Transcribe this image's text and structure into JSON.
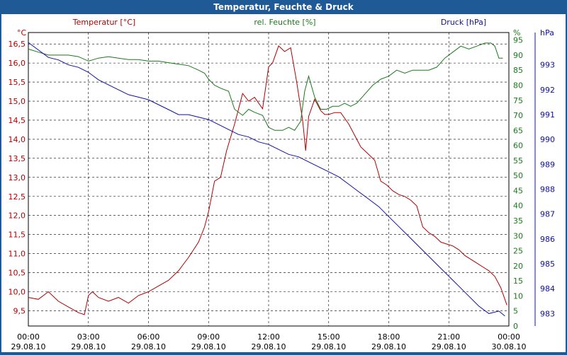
{
  "window": {
    "title": "Temperatur, Feuchte & Druck"
  },
  "colors": {
    "temperature": "#b00000",
    "humidity": "#1a7a1a",
    "pressure": "#1010a0",
    "grid": "#000000",
    "titlebar": "#1f5a96"
  },
  "chart_data": {
    "type": "line",
    "title": "Temperatur, Feuchte & Druck",
    "x_ticks": [
      {
        "time": "00:00",
        "date": "29.08.10"
      },
      {
        "time": "03:00",
        "date": "29.08.10"
      },
      {
        "time": "06:00",
        "date": "29.08.10"
      },
      {
        "time": "09:00",
        "date": "29.08.10"
      },
      {
        "time": "12:00",
        "date": "29.08.10"
      },
      {
        "time": "15:00",
        "date": "29.08.10"
      },
      {
        "time": "18:00",
        "date": "29.08.10"
      },
      {
        "time": "21:00",
        "date": "29.08.10"
      },
      {
        "time": "00:00",
        "date": "30.08.10"
      }
    ],
    "xlim": [
      0,
      24
    ],
    "axes": {
      "temperature": {
        "label": "Temperatur [°C]",
        "unit": "°C",
        "ylim": [
          9.1,
          16.8
        ],
        "ticks": [
          "9,5",
          "10,0",
          "10,5",
          "11,0",
          "11,5",
          "12,0",
          "12,5",
          "13,0",
          "13,5",
          "14,0",
          "14,5",
          "15,0",
          "15,5",
          "16,0",
          "16,5"
        ],
        "tick_values": [
          9.5,
          10,
          10.5,
          11,
          11.5,
          12,
          12.5,
          13,
          13.5,
          14,
          14.5,
          15,
          15.5,
          16,
          16.5
        ]
      },
      "humidity": {
        "label": "rel. Feuchte [%]",
        "unit": "%",
        "ylim": [
          0,
          97.5
        ],
        "ticks": [
          "0",
          "5",
          "10",
          "15",
          "20",
          "25",
          "30",
          "35",
          "40",
          "45",
          "50",
          "55",
          "60",
          "65",
          "70",
          "75",
          "80",
          "85",
          "90",
          "95"
        ],
        "tick_values": [
          0,
          5,
          10,
          15,
          20,
          25,
          30,
          35,
          40,
          45,
          50,
          55,
          60,
          65,
          70,
          75,
          80,
          85,
          90,
          95
        ]
      },
      "pressure": {
        "label": "Druck [hPa]",
        "unit": "hPa",
        "ylim": [
          982.5,
          994.3
        ],
        "ticks": [
          "983",
          "984",
          "985",
          "986",
          "987",
          "988",
          "989",
          "990",
          "991",
          "992",
          "993"
        ],
        "tick_values": [
          983,
          984,
          985,
          986,
          987,
          988,
          989,
          990,
          991,
          992,
          993
        ]
      }
    },
    "series": [
      {
        "name": "Temperatur",
        "axis": "temperature",
        "x": [
          0,
          0.5,
          1,
          1.5,
          2,
          2.5,
          2.8,
          3,
          3.2,
          3.5,
          4,
          4.5,
          5,
          5.5,
          6,
          6.5,
          7,
          7.5,
          8,
          8.5,
          8.8,
          9,
          9.3,
          9.6,
          9.9,
          10.3,
          10.7,
          11,
          11.3,
          11.7,
          12,
          12.2,
          12.5,
          12.8,
          13.1,
          13.4,
          13.7,
          13.85,
          14,
          14.3,
          14.6,
          14.8,
          15,
          15.3,
          15.6,
          16,
          16.3,
          16.6,
          17,
          17.3,
          17.6,
          17.9,
          18.2,
          18.5,
          18.8,
          19.1,
          19.4,
          19.7,
          20,
          20.3,
          20.6,
          20.9,
          21.2,
          21.5,
          21.8,
          22.1,
          22.4,
          22.7,
          23,
          23.3,
          23.6,
          23.9
        ],
        "values": [
          9.85,
          9.8,
          10.0,
          9.75,
          9.6,
          9.45,
          9.4,
          9.9,
          10.0,
          9.85,
          9.75,
          9.85,
          9.7,
          9.9,
          10.0,
          10.15,
          10.3,
          10.55,
          10.9,
          11.3,
          11.7,
          12.1,
          12.9,
          13.0,
          13.7,
          14.4,
          15.2,
          15.0,
          15.1,
          14.8,
          15.9,
          16.0,
          16.45,
          16.3,
          16.4,
          15.5,
          14.5,
          13.7,
          14.6,
          15.05,
          14.75,
          14.65,
          14.65,
          14.7,
          14.7,
          14.4,
          14.1,
          13.8,
          13.6,
          13.45,
          12.9,
          12.8,
          12.65,
          12.55,
          12.5,
          12.4,
          12.25,
          11.7,
          11.55,
          11.45,
          11.3,
          11.25,
          11.2,
          11.1,
          10.95,
          10.85,
          10.75,
          10.65,
          10.55,
          10.4,
          10.1,
          9.65
        ]
      },
      {
        "name": "rel. Feuchte",
        "axis": "humidity",
        "x": [
          0,
          0.5,
          1,
          1.5,
          2,
          2.5,
          3,
          3.5,
          4,
          4.5,
          5,
          5.5,
          6,
          6.5,
          7,
          7.5,
          8,
          8.5,
          8.8,
          9,
          9.3,
          9.6,
          10,
          10.3,
          10.7,
          11,
          11.3,
          11.7,
          12,
          12.3,
          12.7,
          13,
          13.3,
          13.6,
          13.8,
          14,
          14.3,
          14.6,
          14.9,
          15.2,
          15.5,
          15.8,
          16.1,
          16.4,
          16.8,
          17.2,
          17.6,
          18,
          18.4,
          18.8,
          19.2,
          19.6,
          20,
          20.4,
          20.8,
          21.2,
          21.6,
          22,
          22.4,
          22.8,
          23.1,
          23.3,
          23.5,
          23.7
        ],
        "values": [
          92,
          91,
          90,
          90,
          90,
          89.5,
          88,
          89,
          89.5,
          89,
          88.5,
          88.5,
          88,
          88,
          87.5,
          87,
          86.5,
          85,
          84,
          82,
          80,
          79,
          78,
          72,
          70,
          72,
          71,
          70,
          66,
          65,
          65,
          66,
          65,
          68,
          78,
          83,
          76,
          72,
          72,
          73,
          73,
          74,
          73,
          74,
          77,
          80,
          82,
          83,
          85,
          84,
          85,
          85,
          85,
          86,
          89,
          91,
          93,
          92,
          93,
          94,
          94,
          93,
          89,
          89
        ]
      },
      {
        "name": "Druck",
        "axis": "pressure",
        "x": [
          0,
          0.5,
          1,
          1.5,
          2,
          2.5,
          3,
          3.5,
          4,
          4.5,
          5,
          5.5,
          6,
          6.5,
          7,
          7.5,
          8,
          8.5,
          9,
          9.5,
          10,
          10.5,
          11,
          11.5,
          12,
          12.5,
          13,
          13.5,
          14,
          14.5,
          15,
          15.5,
          16,
          16.5,
          17,
          17.5,
          18,
          18.5,
          19,
          19.5,
          20,
          20.5,
          21,
          21.5,
          22,
          22.5,
          23,
          23.5,
          23.8
        ],
        "values": [
          993.9,
          993.6,
          993.3,
          993.2,
          993.0,
          992.9,
          992.7,
          992.4,
          992.2,
          992.0,
          991.8,
          991.7,
          991.6,
          991.4,
          991.2,
          991.0,
          991.0,
          990.9,
          990.8,
          990.6,
          990.4,
          990.2,
          990.1,
          989.9,
          989.8,
          989.6,
          989.4,
          989.3,
          989.1,
          988.9,
          988.7,
          988.5,
          988.2,
          987.9,
          987.6,
          987.3,
          986.9,
          986.5,
          986.1,
          985.7,
          985.3,
          984.9,
          984.5,
          984.1,
          983.7,
          983.3,
          983.0,
          983.1,
          982.9
        ]
      }
    ]
  }
}
